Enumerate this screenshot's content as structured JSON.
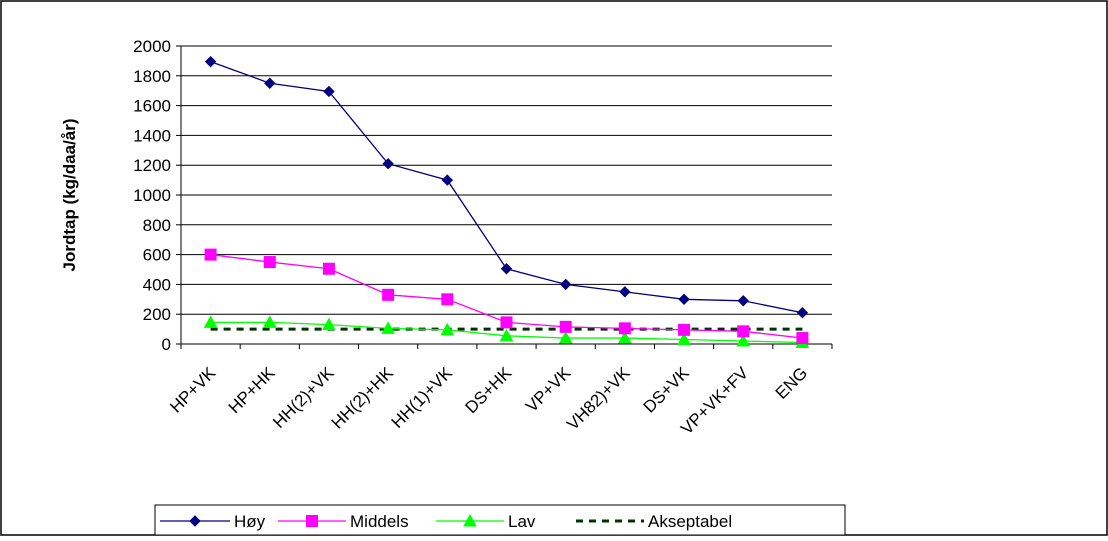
{
  "chart_data": {
    "type": "line",
    "title": "",
    "xlabel": "",
    "ylabel": "Jordtap (kg/daa/år)",
    "ylim": [
      0,
      2000
    ],
    "yticks": [
      0,
      200,
      400,
      600,
      800,
      1000,
      1200,
      1400,
      1600,
      1800,
      2000
    ],
    "grid": true,
    "legend_position": "bottom",
    "categories": [
      "HP+VK",
      "HP+HK",
      "HH(2)+VK",
      "HH(2)+HK",
      "HH(1)+VK",
      "DS+HK",
      "VP+VK",
      "VH82)+VK",
      "DS+VK",
      "VP+VK+FV",
      "ENG"
    ],
    "series": [
      {
        "name": "Høy",
        "color": "#000080",
        "marker": "diamond",
        "dash": false,
        "values": [
          1895,
          1750,
          1695,
          1210,
          1100,
          505,
          400,
          350,
          300,
          290,
          210
        ]
      },
      {
        "name": "Middels",
        "color": "#FF00FF",
        "marker": "square",
        "dash": false,
        "values": [
          600,
          550,
          505,
          330,
          300,
          145,
          115,
          105,
          95,
          85,
          40
        ]
      },
      {
        "name": "Lav",
        "color": "#00FF00",
        "marker": "triangle",
        "dash": false,
        "values": [
          145,
          145,
          130,
          105,
          95,
          55,
          40,
          40,
          30,
          20,
          10
        ]
      },
      {
        "name": "Akseptabel",
        "color": "#003300",
        "marker": "none",
        "dash": true,
        "values": [
          100,
          100,
          100,
          100,
          100,
          100,
          100,
          100,
          100,
          100,
          100
        ]
      }
    ]
  }
}
